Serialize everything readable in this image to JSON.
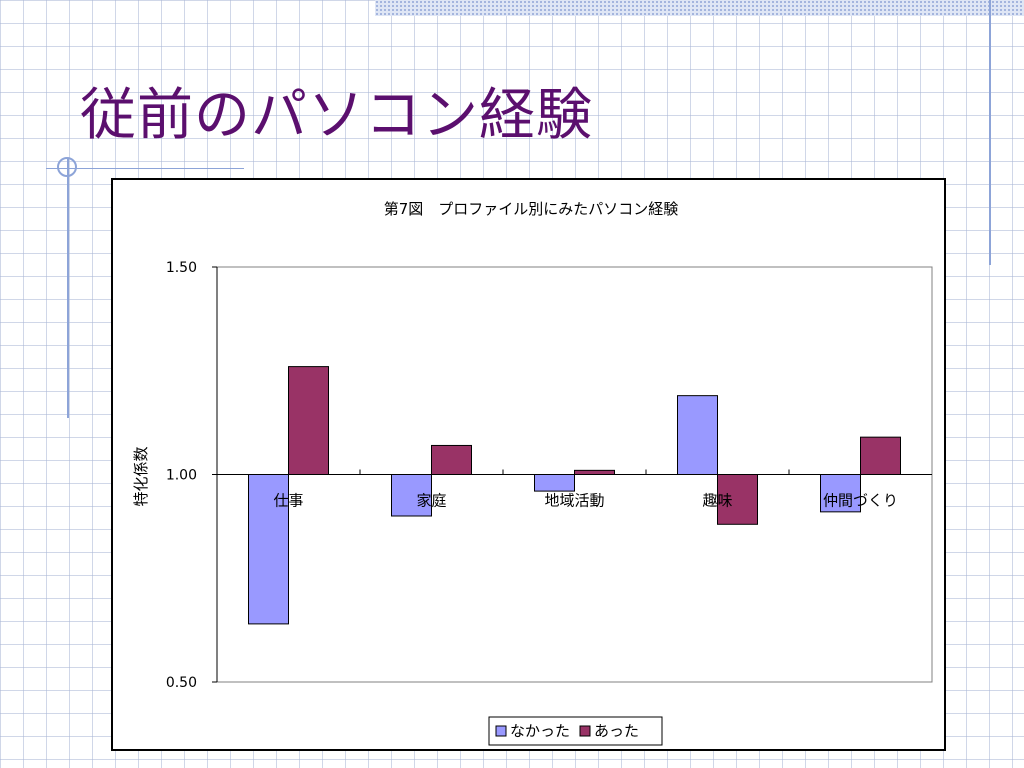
{
  "slide": {
    "title": "従前のパソコン経験"
  },
  "chart_data": {
    "type": "bar",
    "title": "第7図　プロファイル別にみたパソコン経験",
    "xlabel": "",
    "ylabel": "特化係数",
    "ylim": [
      0.5,
      1.5
    ],
    "yticks": [
      0.5,
      1.0,
      1.5
    ],
    "ytick_labels": [
      "0.50",
      "1.00",
      "1.50"
    ],
    "baseline": 1.0,
    "categories": [
      "仕事",
      "家庭",
      "地域活動",
      "趣味",
      "仲間づくり"
    ],
    "series": [
      {
        "name": "なかった",
        "color": "#9999ff",
        "values": [
          0.64,
          0.9,
          0.96,
          1.19,
          0.91
        ]
      },
      {
        "name": "あった",
        "color": "#993366",
        "values": [
          1.26,
          1.07,
          1.01,
          0.88,
          1.09
        ]
      }
    ],
    "grid": false,
    "legend_position": "bottom"
  }
}
